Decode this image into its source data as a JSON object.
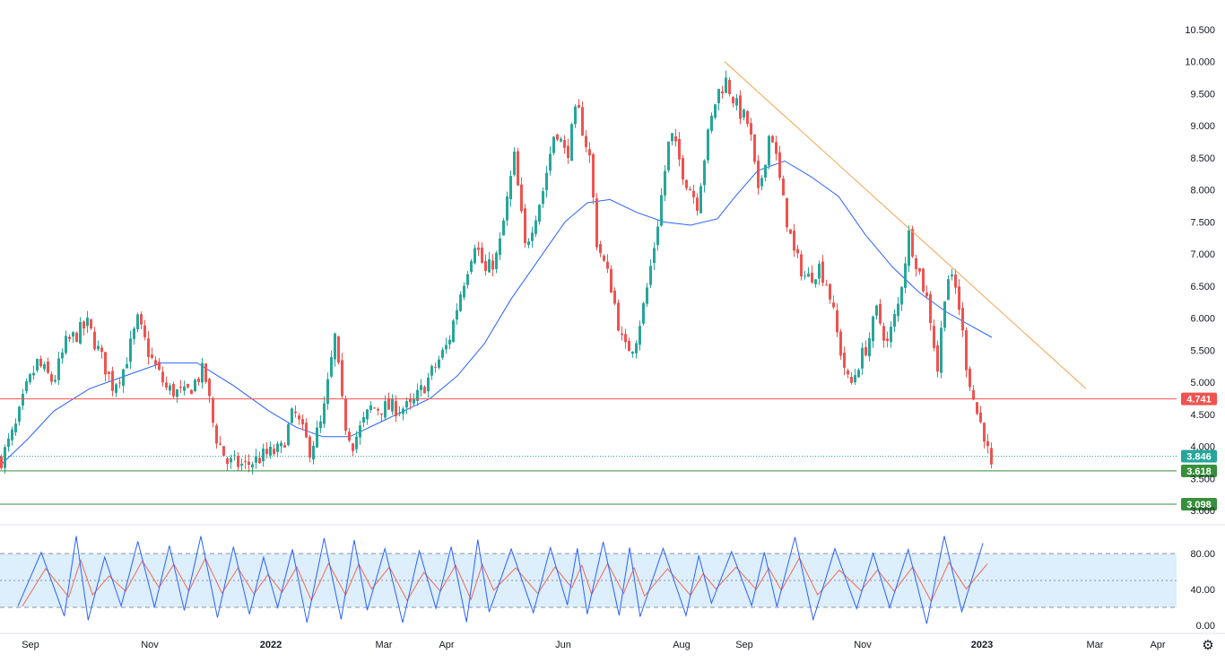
{
  "chart_data": {
    "type": "candlestick",
    "title": "",
    "price_axis": {
      "ylim": [
        3.0,
        10.5
      ],
      "ticks": [
        "10.500",
        "10.000",
        "9.500",
        "9.000",
        "8.500",
        "8.000",
        "7.500",
        "7.000",
        "6.500",
        "6.000",
        "5.500",
        "5.000",
        "4.500",
        "4.000",
        "3.500",
        "3.000"
      ]
    },
    "time_axis": {
      "labels": [
        "Sep",
        "Nov",
        "2022",
        "Mar",
        "Apr",
        "Jun",
        "Aug",
        "Sep",
        "Nov",
        "2023",
        "Mar",
        "Apr"
      ]
    },
    "close_path": [
      [
        0,
        3.8
      ],
      [
        16,
        4.3
      ],
      [
        28,
        4.9
      ],
      [
        40,
        5.3
      ],
      [
        58,
        5.0
      ],
      [
        72,
        5.6
      ],
      [
        96,
        5.9
      ],
      [
        114,
        5.3
      ],
      [
        124,
        4.95
      ],
      [
        136,
        5.2
      ],
      [
        152,
        5.95
      ],
      [
        166,
        5.4
      ],
      [
        184,
        4.9
      ],
      [
        205,
        4.8
      ],
      [
        226,
        5.2
      ],
      [
        238,
        4.2
      ],
      [
        252,
        3.75
      ],
      [
        272,
        3.7
      ],
      [
        292,
        3.85
      ],
      [
        312,
        3.95
      ],
      [
        326,
        4.55
      ],
      [
        344,
        3.95
      ],
      [
        358,
        4.4
      ],
      [
        372,
        5.7
      ],
      [
        382,
        4.4
      ],
      [
        392,
        4.05
      ],
      [
        412,
        4.6
      ],
      [
        432,
        4.6
      ],
      [
        456,
        4.6
      ],
      [
        474,
        5.0
      ],
      [
        498,
        5.6
      ],
      [
        512,
        6.4
      ],
      [
        528,
        7.2
      ],
      [
        540,
        6.7
      ],
      [
        554,
        7.0
      ],
      [
        572,
        8.5
      ],
      [
        584,
        7.1
      ],
      [
        604,
        8.0
      ],
      [
        618,
        9.0
      ],
      [
        630,
        8.5
      ],
      [
        642,
        9.3
      ],
      [
        656,
        8.5
      ],
      [
        664,
        7.2
      ],
      [
        680,
        6.5
      ],
      [
        694,
        5.5
      ],
      [
        706,
        5.6
      ],
      [
        718,
        6.3
      ],
      [
        730,
        7.3
      ],
      [
        746,
        8.9
      ],
      [
        762,
        8.2
      ],
      [
        776,
        7.8
      ],
      [
        786,
        8.7
      ],
      [
        798,
        9.5
      ],
      [
        808,
        9.7
      ],
      [
        820,
        9.3
      ],
      [
        834,
        9.0
      ],
      [
        844,
        7.9
      ],
      [
        858,
        9.0
      ],
      [
        872,
        7.8
      ],
      [
        884,
        7.0
      ],
      [
        898,
        6.6
      ],
      [
        912,
        6.8
      ],
      [
        922,
        6.5
      ],
      [
        934,
        5.6
      ],
      [
        946,
        4.9
      ],
      [
        956,
        5.3
      ],
      [
        966,
        5.6
      ],
      [
        976,
        6.1
      ],
      [
        988,
        5.6
      ],
      [
        1000,
        6.2
      ],
      [
        1012,
        7.3
      ],
      [
        1024,
        6.7
      ],
      [
        1034,
        6.2
      ],
      [
        1044,
        5.2
      ],
      [
        1054,
        6.7
      ],
      [
        1066,
        6.4
      ],
      [
        1076,
        5.3
      ],
      [
        1086,
        4.6
      ],
      [
        1096,
        4.2
      ],
      [
        1104,
        3.62
      ],
      [
        1107,
        3.85
      ]
    ],
    "moving_average": {
      "points": [
        [
          0,
          3.7
        ],
        [
          30,
          4.1
        ],
        [
          60,
          4.55
        ],
        [
          100,
          4.9
        ],
        [
          140,
          5.1
        ],
        [
          180,
          5.3
        ],
        [
          220,
          5.3
        ],
        [
          260,
          4.95
        ],
        [
          300,
          4.55
        ],
        [
          330,
          4.3
        ],
        [
          360,
          4.15
        ],
        [
          390,
          4.15
        ],
        [
          420,
          4.35
        ],
        [
          450,
          4.55
        ],
        [
          480,
          4.75
        ],
        [
          510,
          5.1
        ],
        [
          540,
          5.6
        ],
        [
          570,
          6.3
        ],
        [
          600,
          6.9
        ],
        [
          630,
          7.5
        ],
        [
          655,
          7.8
        ],
        [
          680,
          7.85
        ],
        [
          710,
          7.65
        ],
        [
          740,
          7.5
        ],
        [
          770,
          7.45
        ],
        [
          800,
          7.55
        ],
        [
          820,
          7.9
        ],
        [
          845,
          8.3
        ],
        [
          875,
          8.45
        ],
        [
          905,
          8.2
        ],
        [
          935,
          7.9
        ],
        [
          965,
          7.3
        ],
        [
          995,
          6.8
        ],
        [
          1025,
          6.4
        ],
        [
          1055,
          6.1
        ],
        [
          1080,
          5.9
        ],
        [
          1106,
          5.7
        ]
      ],
      "color": "#2962ff"
    },
    "trendline": {
      "start": [
        808,
        10.0
      ],
      "end": [
        1211,
        4.9
      ],
      "color": "#f5a14d"
    },
    "horizontal_levels": [
      {
        "value": 4.741,
        "label": "4.741",
        "color": "#f05350"
      },
      {
        "value": 3.618,
        "label": "3.618",
        "color": "#388e3c"
      },
      {
        "value": 3.098,
        "label": "3.098",
        "color": "#388e3c"
      }
    ],
    "last_price": {
      "value": 3.846,
      "label": "3.846",
      "color": "#26a69a"
    },
    "up_color": "#26a69a",
    "down_color": "#ef5350",
    "stochastic": {
      "ylim": [
        0,
        100
      ],
      "ticks": [
        "80.00",
        "40.00",
        "0.00"
      ],
      "bands": [
        80,
        50,
        20
      ],
      "band_fill": "#ddeefc",
      "k_color": "#2962ff",
      "d_color": "#f06a55"
    },
    "settings_icon": "gear-icon"
  }
}
